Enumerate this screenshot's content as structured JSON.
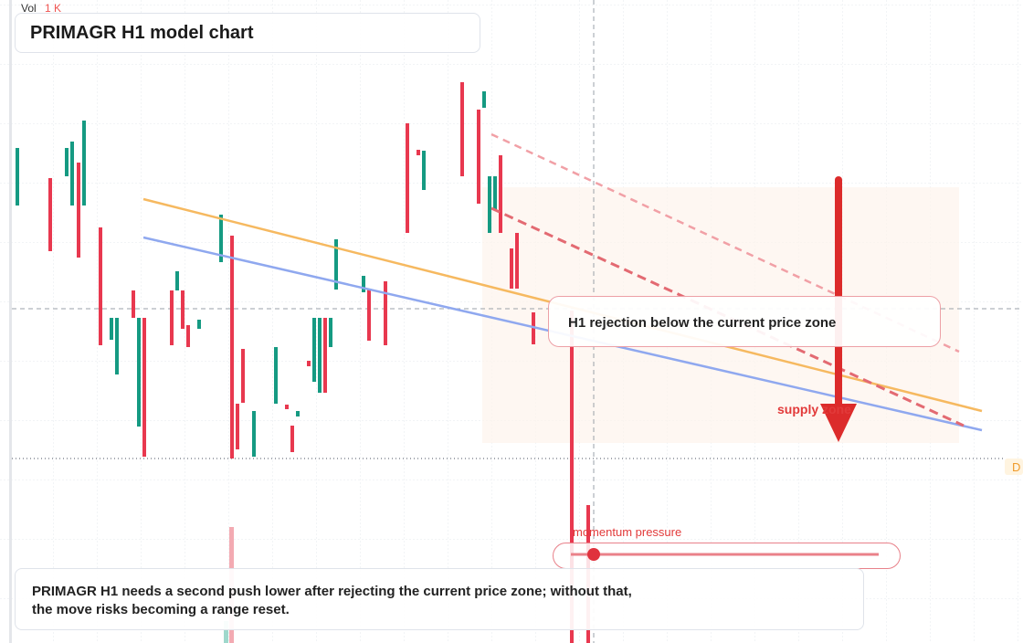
{
  "header": {
    "vol_label": "Vol",
    "vol_value": "1 K",
    "title": "PRIMAGR H1 model chart"
  },
  "annotations": {
    "callout": "H1 rejection below the current price zone",
    "zone": "supply zone",
    "momentum": "momentum pressure",
    "summary": "PRIMAGR H1 needs a second push lower after rejecting the current price zone; without that, the move risks becoming a range reset."
  },
  "axis_badge": "D"
}
